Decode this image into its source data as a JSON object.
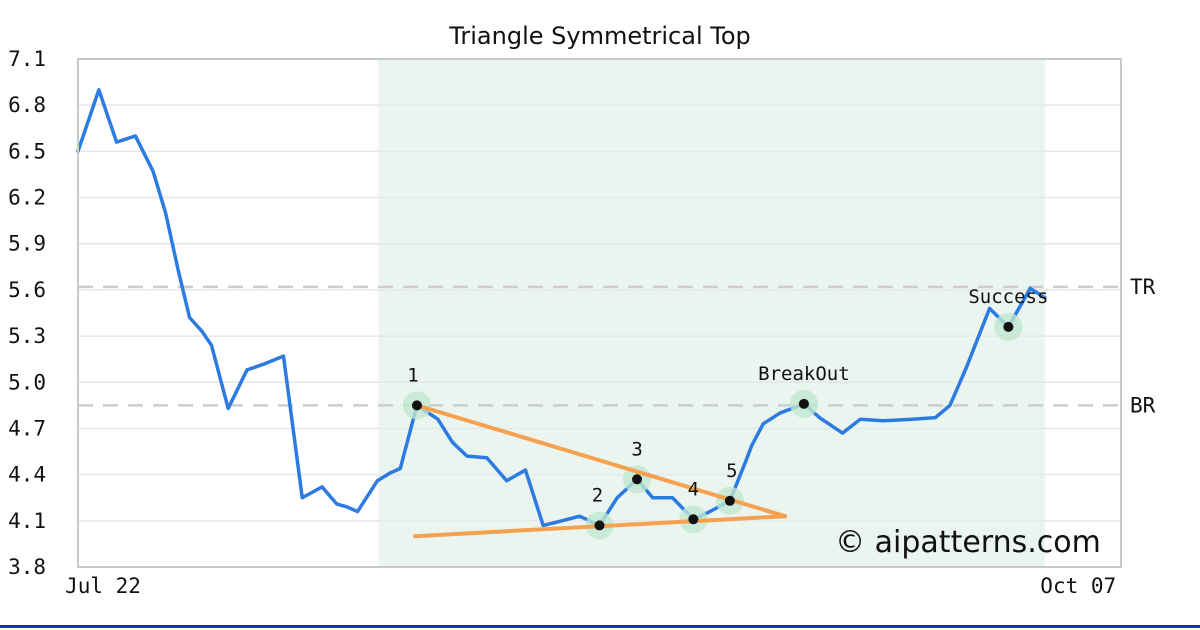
{
  "page": {
    "background": "#ffffff"
  },
  "watermark": {
    "text": "© aipatterns.com",
    "color": "#c7c7ef"
  },
  "footer_bar": {
    "color": "#1f2db0"
  },
  "chart_data": {
    "type": "line",
    "title": "Triangle Symmetrical Top",
    "xlabel": "",
    "ylabel": "",
    "grid": "horizontal",
    "legend": "none",
    "x_axis": {
      "ticks": [
        {
          "label": "Jul 22",
          "t": 0.024
        },
        {
          "label": "Oct 07",
          "t": 0.959
        }
      ]
    },
    "y_axis": {
      "min": 3.8,
      "max": 7.1,
      "step": 0.3
    },
    "shaded_region": {
      "t0": 0.288,
      "t1": 0.927,
      "color": "#ebf5ef"
    },
    "levels": [
      {
        "name": "TR",
        "value": 5.62
      },
      {
        "name": "BR",
        "value": 4.85
      }
    ],
    "series": [
      {
        "name": "price",
        "color": "#2c7be0",
        "points": [
          [
            0.0,
            6.5
          ],
          [
            0.02,
            6.9
          ],
          [
            0.037,
            6.56
          ],
          [
            0.055,
            6.6
          ],
          [
            0.072,
            6.37
          ],
          [
            0.084,
            6.1
          ],
          [
            0.096,
            5.73
          ],
          [
            0.107,
            5.42
          ],
          [
            0.119,
            5.33
          ],
          [
            0.128,
            5.24
          ],
          [
            0.144,
            4.83
          ],
          [
            0.162,
            5.08
          ],
          [
            0.179,
            5.12
          ],
          [
            0.197,
            5.17
          ],
          [
            0.215,
            4.25
          ],
          [
            0.234,
            4.32
          ],
          [
            0.248,
            4.21
          ],
          [
            0.258,
            4.19
          ],
          [
            0.268,
            4.16
          ],
          [
            0.287,
            4.36
          ],
          [
            0.299,
            4.41
          ],
          [
            0.309,
            4.44
          ],
          [
            0.325,
            4.85
          ],
          [
            0.345,
            4.76
          ],
          [
            0.359,
            4.61
          ],
          [
            0.373,
            4.52
          ],
          [
            0.392,
            4.51
          ],
          [
            0.411,
            4.36
          ],
          [
            0.429,
            4.43
          ],
          [
            0.446,
            4.07
          ],
          [
            0.464,
            4.1
          ],
          [
            0.481,
            4.13
          ],
          [
            0.5,
            4.07
          ],
          [
            0.517,
            4.25
          ],
          [
            0.536,
            4.37
          ],
          [
            0.551,
            4.25
          ],
          [
            0.57,
            4.25
          ],
          [
            0.59,
            4.11
          ],
          [
            0.603,
            4.15
          ],
          [
            0.625,
            4.23
          ],
          [
            0.641,
            4.5
          ],
          [
            0.646,
            4.59
          ],
          [
            0.657,
            4.73
          ],
          [
            0.673,
            4.8
          ],
          [
            0.696,
            4.86
          ],
          [
            0.711,
            4.77
          ],
          [
            0.733,
            4.67
          ],
          [
            0.75,
            4.76
          ],
          [
            0.772,
            4.75
          ],
          [
            0.8,
            4.76
          ],
          [
            0.822,
            4.77
          ],
          [
            0.836,
            4.85
          ],
          [
            0.852,
            5.1
          ],
          [
            0.874,
            5.48
          ],
          [
            0.892,
            5.36
          ],
          [
            0.913,
            5.61
          ],
          [
            0.927,
            5.55
          ]
        ]
      }
    ],
    "trendlines": [
      {
        "name": "upper",
        "from": [
          0.325,
          4.85
        ],
        "to": [
          0.678,
          4.13
        ],
        "color": "#f6a14f"
      },
      {
        "name": "lower",
        "from": [
          0.323,
          4.0
        ],
        "to": [
          0.678,
          4.13
        ],
        "color": "#f6a14f"
      }
    ],
    "key_points": [
      {
        "label": "1",
        "t": 0.325,
        "value": 4.85,
        "dx": -4
      },
      {
        "label": "2",
        "t": 0.5,
        "value": 4.07,
        "dx": -2
      },
      {
        "label": "3",
        "t": 0.536,
        "value": 4.37,
        "dx": 0
      },
      {
        "label": "4",
        "t": 0.59,
        "value": 4.11,
        "dx": 0
      },
      {
        "label": "5",
        "t": 0.625,
        "value": 4.23,
        "dx": 2
      },
      {
        "label": "BreakOut",
        "t": 0.696,
        "value": 4.86,
        "dx": 0
      },
      {
        "label": "Success",
        "t": 0.892,
        "value": 5.36,
        "dx": 0
      }
    ],
    "marker_style": {
      "halo_color": "#bfe7d0",
      "dot_color": "#111111"
    },
    "style": {
      "grid_color": "#e7e7e7",
      "border_color": "#c9c9c9",
      "level_dash_color": "#cdcdcd"
    }
  }
}
